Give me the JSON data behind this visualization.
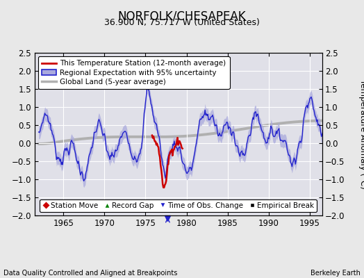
{
  "title": "NORFOLK/CHESAPEAK",
  "subtitle": "36.900 N, 75.717 W (United States)",
  "ylabel": "Temperature Anomaly (°C)",
  "xlabel_left": "Data Quality Controlled and Aligned at Breakpoints",
  "xlabel_right": "Berkeley Earth",
  "xlim": [
    1961.5,
    1996.5
  ],
  "ylim": [
    -2.0,
    2.5
  ],
  "yticks": [
    -2.0,
    -1.5,
    -1.0,
    -0.5,
    0.0,
    0.5,
    1.0,
    1.5,
    2.0,
    2.5
  ],
  "xticks": [
    1965,
    1970,
    1975,
    1980,
    1985,
    1990,
    1995
  ],
  "bg_color": "#e8e8e8",
  "plot_bg_color": "#e0e0e8",
  "grid_color": "#ffffff",
  "regional_color": "#2222cc",
  "regional_fill_color": "#aaaadd",
  "station_color": "#cc0000",
  "global_color": "#b0b0b0",
  "legend_labels": [
    "This Temperature Station (12-month average)",
    "Regional Expectation with 95% uncertainty",
    "Global Land (5-year average)"
  ],
  "legend_symbol_labels": [
    "Station Move",
    "Record Gap",
    "Time of Obs. Change",
    "Empirical Break"
  ],
  "time_obs_change_year": 1977.7
}
